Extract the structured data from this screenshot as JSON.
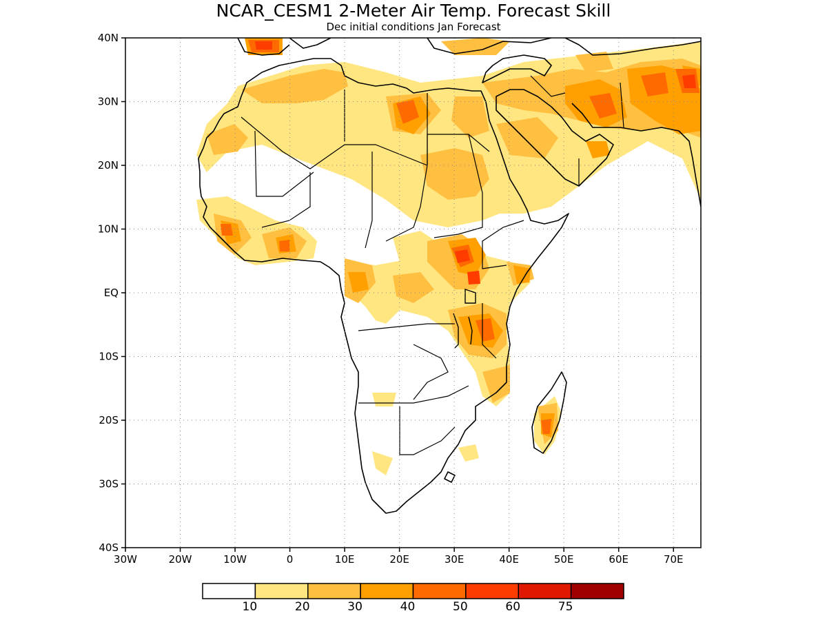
{
  "title": "NCAR_CESM1 2-Meter Air Temp. Forecast Skill",
  "subtitle": "Dec initial conditions  Jan Forecast",
  "map": {
    "lon_range": [
      -30,
      75
    ],
    "lat_range": [
      -40,
      40
    ],
    "lat_ticks": [
      {
        "lat": 40,
        "label": "40N"
      },
      {
        "lat": 30,
        "label": "30N"
      },
      {
        "lat": 20,
        "label": "20N"
      },
      {
        "lat": 10,
        "label": "10N"
      },
      {
        "lat": 0,
        "label": "EQ"
      },
      {
        "lat": -10,
        "label": "10S"
      },
      {
        "lat": -20,
        "label": "20S"
      },
      {
        "lat": -30,
        "label": "30S"
      },
      {
        "lat": -40,
        "label": "40S"
      }
    ],
    "lon_ticks": [
      {
        "lon": -30,
        "label": "30W"
      },
      {
        "lon": -20,
        "label": "20W"
      },
      {
        "lon": -10,
        "label": "10W"
      },
      {
        "lon": 0,
        "label": "0"
      },
      {
        "lon": 10,
        "label": "10E"
      },
      {
        "lon": 20,
        "label": "20E"
      },
      {
        "lon": 30,
        "label": "30E"
      },
      {
        "lon": 40,
        "label": "40E"
      },
      {
        "lon": 50,
        "label": "50E"
      },
      {
        "lon": 60,
        "label": "60E"
      },
      {
        "lon": 70,
        "label": "70E"
      }
    ],
    "grid": "dotted"
  },
  "colorbar": {
    "colors": [
      "#ffffff",
      "#ffe680",
      "#ffbf40",
      "#ffa000",
      "#ff6a00",
      "#ff3c00",
      "#e01800",
      "#a00000"
    ],
    "labels": [
      "10",
      "20",
      "30",
      "40",
      "50",
      "60",
      "75"
    ]
  }
}
